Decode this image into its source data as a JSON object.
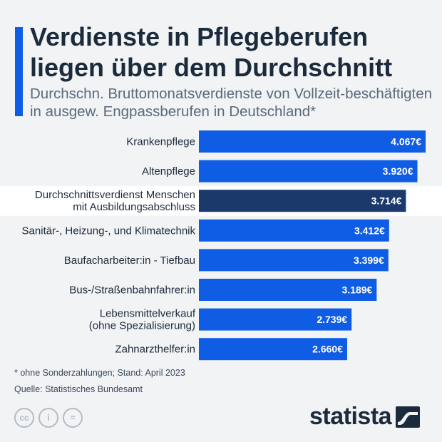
{
  "header": {
    "title": "Verdienste in Pflegeberufen liegen über dem Durchschnitt",
    "subtitle": "Durchschn. Bruttomonatsverdienste von Vollzeit-beschäftigten in ausgew. Engpassberufen in Deutschland*"
  },
  "chart_data": {
    "type": "bar",
    "orientation": "horizontal",
    "title": "Verdienste in Pflegeberufen liegen über dem Durchschnitt",
    "unit": "€",
    "categories": [
      [
        "Krankenpflege"
      ],
      [
        "Altenpflege"
      ],
      [
        "Durchschnittsverdienst Menschen",
        "mit Ausbildungsabschluss"
      ],
      [
        "Sanitär-, Heizung-, und Klimatechnik"
      ],
      [
        "Baufacharbeiter:in - Tiefbau"
      ],
      [
        "Bus-/Straßenbahnfahrer:in"
      ],
      [
        "Lebensmittelverkauf",
        "(ohne Spezialisierung)"
      ],
      [
        "Zahnarzthelfer:in"
      ]
    ],
    "values": [
      4067,
      3920,
      3714,
      3412,
      3399,
      3189,
      2739,
      2660
    ],
    "value_labels": [
      "4.067€",
      "3.920€",
      "3.714€",
      "3.412€",
      "3.399€",
      "3.189€",
      "2.739€",
      "2.660€"
    ],
    "highlight_index": 2,
    "colors": {
      "bar": "#0f5ce5",
      "highlight_bar": "#1b3a6b",
      "highlight_row": "#ffffff"
    }
  },
  "footer": {
    "note": "* ohne Sonderzahlungen; Stand: April 2023",
    "source": "Quelle: Statistisches Bundesamt",
    "cc_icons": [
      "cc-icon",
      "person-icon",
      "equals-icon"
    ],
    "cc_glyphs": [
      "cc",
      "i",
      "="
    ],
    "brand": "statista"
  },
  "colors": {
    "accent": "#0f5ce5",
    "title": "#1c2b3c",
    "background": "#f1f3f5"
  }
}
